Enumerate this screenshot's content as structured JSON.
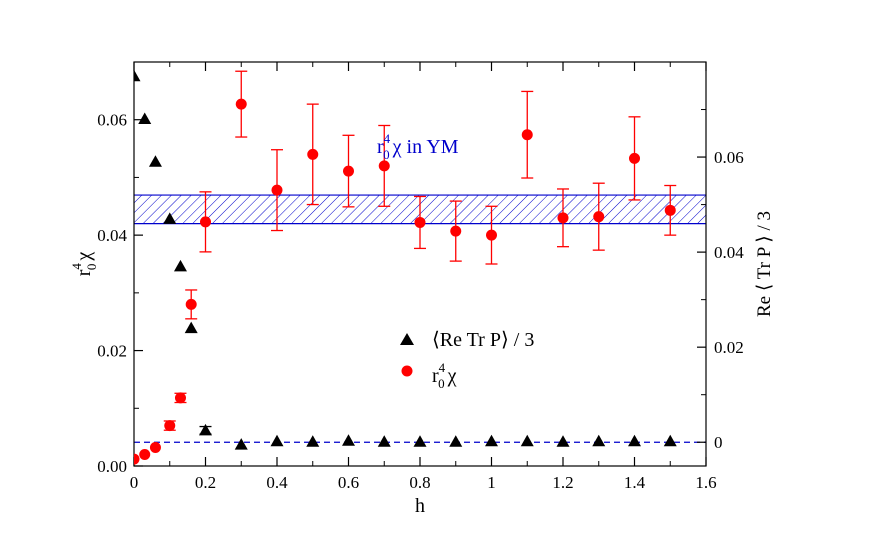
{
  "chart_data": {
    "type": "scatter",
    "xlabel": "h",
    "ylabel_left": {
      "base": "r",
      "sup": "4",
      "sub": "0",
      "tail": "χ"
    },
    "ylabel_right": "Re ⟨ Tr P ⟩ / 3",
    "xlim": [
      0,
      1.6
    ],
    "ylim_left": [
      0,
      0.07
    ],
    "ylim_right": [
      -0.005,
      0.08
    ],
    "x_ticks": [
      0,
      0.2,
      0.4,
      0.6,
      0.8,
      1.0,
      1.2,
      1.4,
      1.6
    ],
    "x_tick_labels": [
      "0",
      "0.2",
      "0.4",
      "0.6",
      "0.8",
      "1",
      "1.2",
      "1.4",
      "1.6"
    ],
    "y_left_ticks": [
      0,
      0.02,
      0.04,
      0.06
    ],
    "y_left_tick_labels": [
      "0.00",
      "0.02",
      "0.04",
      "0.06"
    ],
    "y_right_ticks": [
      0,
      0.02,
      0.04,
      0.06
    ],
    "y_right_tick_labels": [
      "0",
      "0.02",
      "0.04",
      "0.06"
    ],
    "colors": {
      "polyakov": "#000000",
      "chi": "#ff0000",
      "band": "#0000cc"
    },
    "ym_band": {
      "lower": 0.046,
      "upper": 0.052,
      "label": {
        "base": "r",
        "sup": "4",
        "sub": "0",
        "tail": "χ in YM"
      }
    },
    "zero_line_right": 0,
    "series": [
      {
        "name": "⟨Re Tr P⟩ / 3",
        "axis": "right",
        "marker": "triangle",
        "x": [
          0,
          0.03,
          0.06,
          0.1,
          0.13,
          0.16,
          0.2,
          0.3,
          0.4,
          0.5,
          0.6,
          0.7,
          0.8,
          0.9,
          1.0,
          1.1,
          1.2,
          1.3,
          1.4,
          1.5
        ],
        "y": [
          0.077,
          0.068,
          0.059,
          0.047,
          0.037,
          0.024,
          0.0025,
          -0.0005,
          0.0002,
          0.0001,
          0.0003,
          0.0001,
          0.0001,
          0.0001,
          0.0002,
          0.0002,
          0.0001,
          0.0002,
          0.0002,
          0.0002
        ],
        "err": [
          0,
          0,
          0,
          0,
          0,
          0,
          0.0008,
          0,
          0,
          0,
          0,
          0,
          0,
          0,
          0,
          0,
          0,
          0,
          0,
          0
        ]
      },
      {
        "name": "r₀⁴ χ",
        "axis": "left",
        "marker": "circle",
        "x": [
          0,
          0.03,
          0.06,
          0.1,
          0.13,
          0.16,
          0.2,
          0.3,
          0.4,
          0.5,
          0.6,
          0.7,
          0.8,
          0.9,
          1.0,
          1.1,
          1.2,
          1.3,
          1.4,
          1.5
        ],
        "y": [
          0.0012,
          0.002,
          0.0032,
          0.007,
          0.0118,
          0.028,
          0.0423,
          0.0627,
          0.0478,
          0.054,
          0.0511,
          0.052,
          0.0422,
          0.0407,
          0.04,
          0.0574,
          0.043,
          0.0432,
          0.0533,
          0.0443
        ],
        "err": [
          0,
          0,
          0,
          0.0008,
          0.0008,
          0.0025,
          0.0052,
          0.0057,
          0.007,
          0.0087,
          0.0062,
          0.007,
          0.0045,
          0.0052,
          0.005,
          0.0075,
          0.005,
          0.0058,
          0.0072,
          0.0043
        ]
      }
    ],
    "legend": [
      {
        "marker": "triangle",
        "label": "⟨Re Tr P⟩ / 3"
      },
      {
        "marker": "circle",
        "label_parts": {
          "base": "r",
          "sup": "4",
          "sub": "0",
          "tail": "χ"
        }
      }
    ]
  }
}
